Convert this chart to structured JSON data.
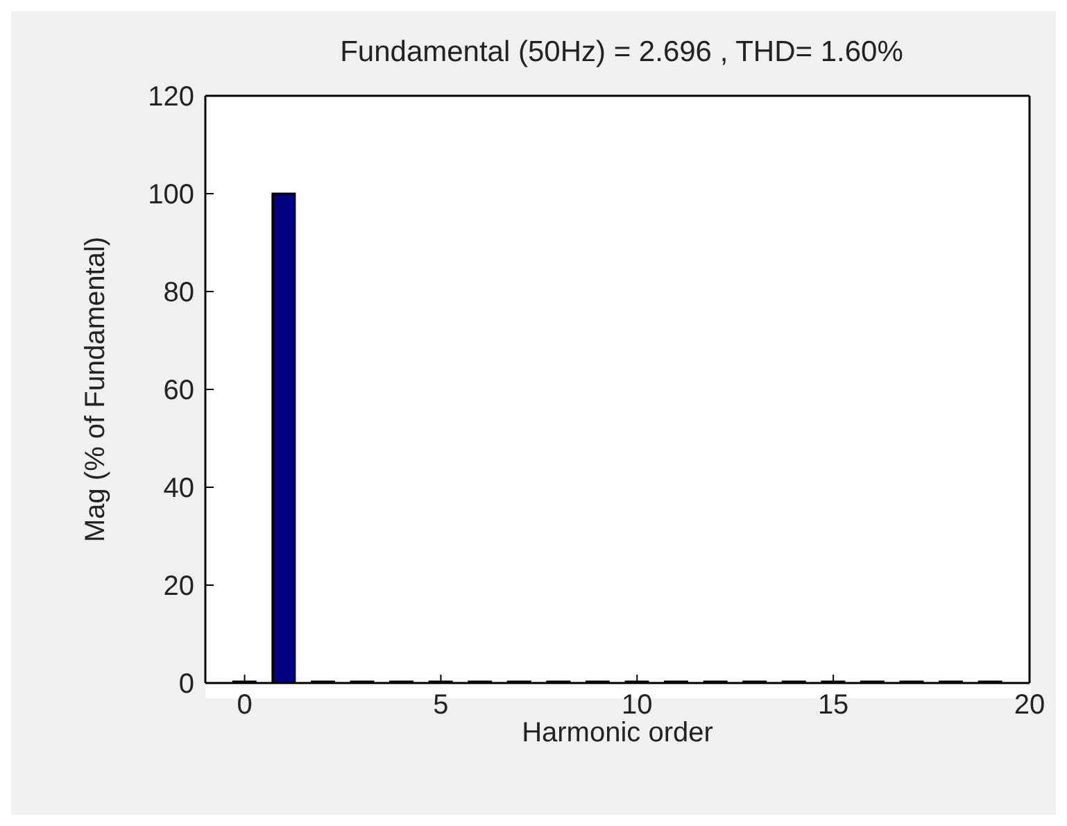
{
  "chart_data": {
    "type": "bar",
    "title": "Fundamental (50Hz) = 2.696 , THD= 1.60%",
    "xlabel": "Harmonic order",
    "ylabel": "Mag (% of Fundamental)",
    "x": [
      0,
      1,
      2,
      3,
      4,
      5,
      6,
      7,
      8,
      9,
      10,
      11,
      12,
      13,
      14,
      15,
      16,
      17,
      18,
      19
    ],
    "values": [
      0.3,
      100,
      0.3,
      0.3,
      0.3,
      0.3,
      0.3,
      0.3,
      0.3,
      0.3,
      0.3,
      0.3,
      0.3,
      0.3,
      0.3,
      0.3,
      0.3,
      0.3,
      0.3,
      0.3
    ],
    "color": "#000080",
    "xlim": [
      -1,
      20
    ],
    "xticks": [
      0,
      5,
      10,
      15,
      20
    ],
    "ylim": [
      0,
      120
    ],
    "yticks": [
      0,
      20,
      40,
      60,
      80,
      100,
      120
    ],
    "grid": false
  }
}
